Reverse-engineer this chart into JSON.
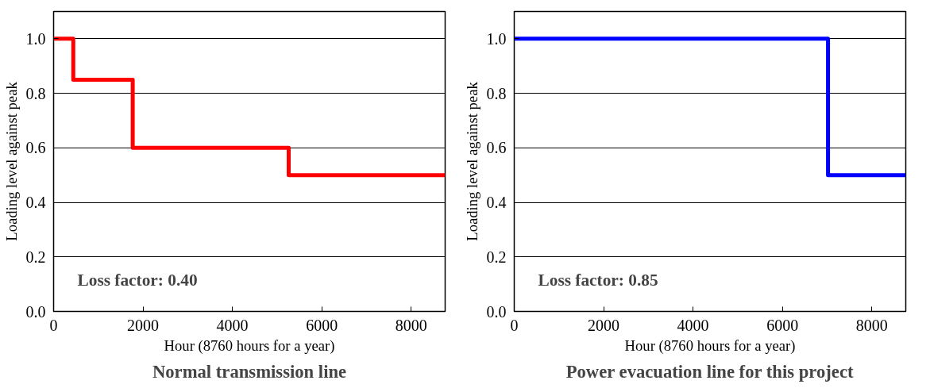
{
  "chart_data": [
    {
      "type": "step",
      "title": "Normal transmission line",
      "xlabel": "Hour (8760 hours for a year)",
      "ylabel": "Loading level against peak",
      "x": [
        0,
        440,
        1770,
        5260,
        8760
      ],
      "values": [
        1.0,
        0.85,
        0.6,
        0.5,
        0.5
      ],
      "color": "#ff0000",
      "xlim": [
        0,
        8760
      ],
      "ylim": [
        0,
        1.1
      ],
      "xticks": [
        0,
        2000,
        4000,
        6000,
        8000
      ],
      "yticks": [
        {
          "value": 0,
          "label": "0.0"
        },
        {
          "value": 0.2,
          "label": "0.2"
        },
        {
          "value": 0.4,
          "label": "0.4"
        },
        {
          "value": 0.6,
          "label": "0.6"
        },
        {
          "value": 0.8,
          "label": "0.8"
        },
        {
          "value": 1.0,
          "label": "1.0"
        }
      ],
      "grid": "y",
      "annotations": [
        "Loss factor: 0.40"
      ]
    },
    {
      "type": "step",
      "title": "Power evacuation line for this project",
      "xlabel": "Hour (8760 hours for a year)",
      "ylabel": "Loading level against peak",
      "x": [
        0,
        7020,
        8760
      ],
      "values": [
        1.0,
        0.5,
        0.5
      ],
      "color": "#0000ff",
      "xlim": [
        0,
        8760
      ],
      "ylim": [
        0,
        1.1
      ],
      "xticks": [
        0,
        2000,
        4000,
        6000,
        8000
      ],
      "yticks": [
        {
          "value": 0,
          "label": "0.0"
        },
        {
          "value": 0.2,
          "label": "0.2"
        },
        {
          "value": 0.4,
          "label": "0.4"
        },
        {
          "value": 0.6,
          "label": "0.6"
        },
        {
          "value": 0.8,
          "label": "0.8"
        },
        {
          "value": 1.0,
          "label": "1.0"
        }
      ],
      "grid": "y",
      "annotations": [
        "Loss factor: 0.85"
      ]
    }
  ]
}
